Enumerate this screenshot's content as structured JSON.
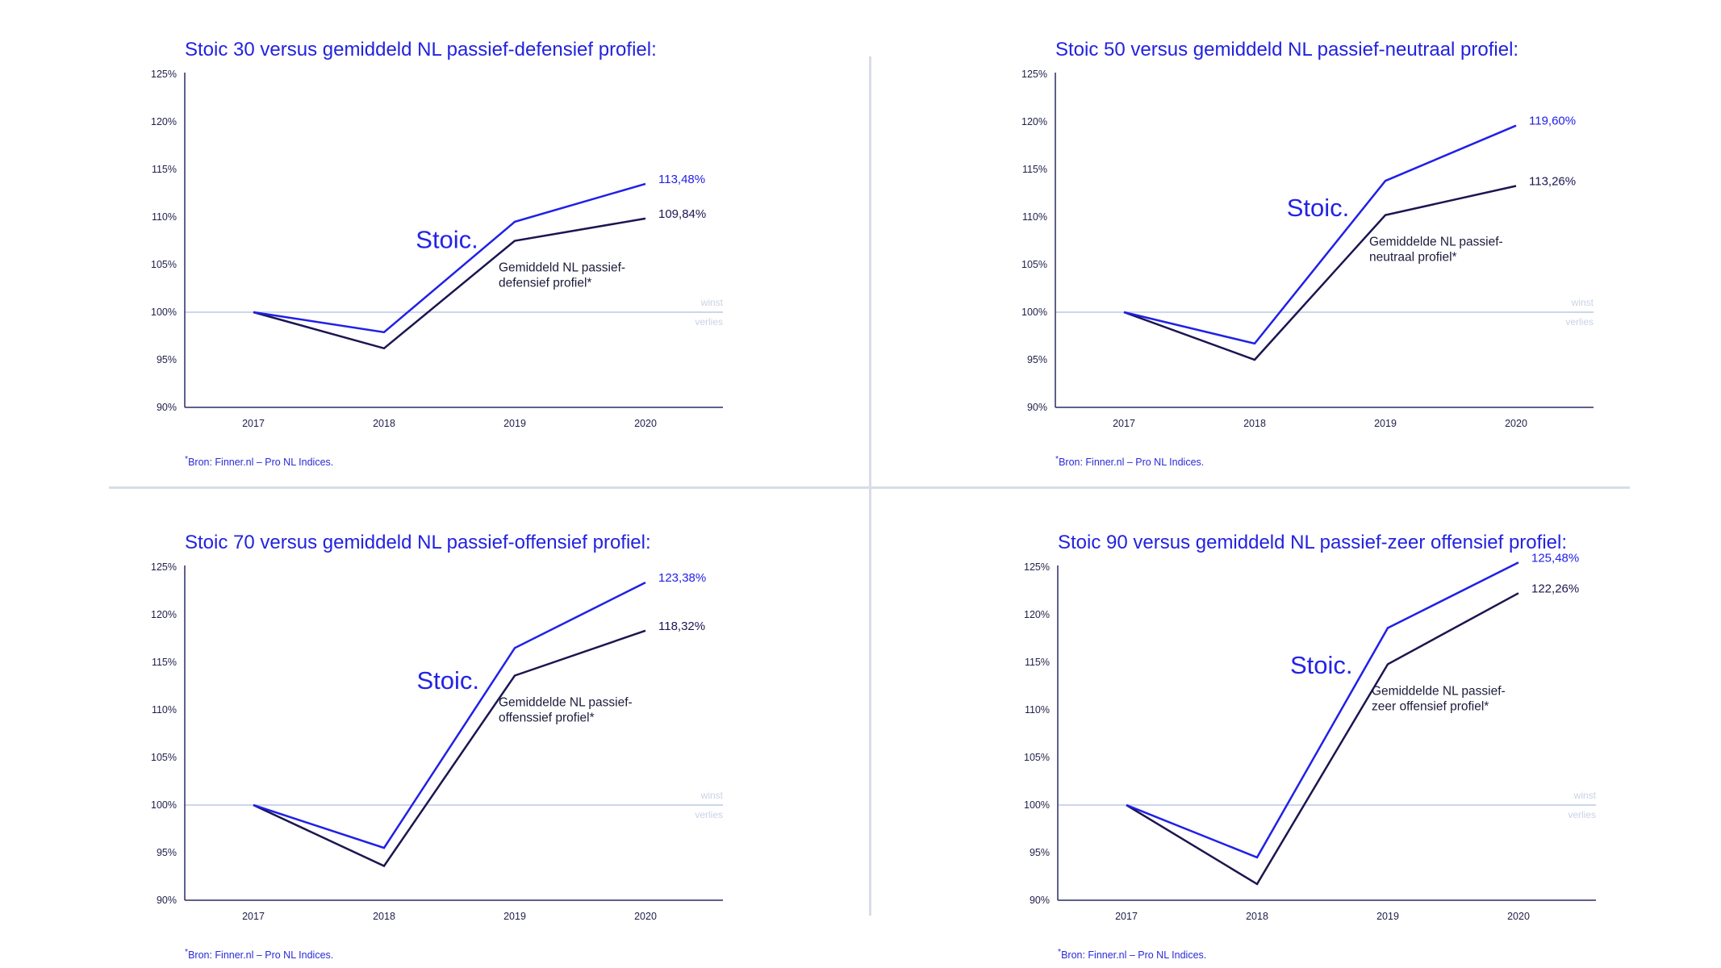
{
  "colors": {
    "stoic": "#2020e8",
    "average": "#1b1650",
    "axis": "#2b2b66",
    "baseline": "#cdd6ea",
    "divider": "#d7dde8"
  },
  "chart_data": [
    {
      "type": "line",
      "title": "Stoic 30 versus gemiddeld NL passief-defensief profiel:",
      "x": [
        "2017",
        "2018",
        "2019",
        "2020"
      ],
      "ylim": [
        90,
        125
      ],
      "y_ticks": [
        "90%",
        "95%",
        "100%",
        "105%",
        "110%",
        "115%",
        "120%",
        "125%"
      ],
      "series": [
        {
          "name": "Stoic.",
          "values": [
            100,
            97.9,
            109.5,
            113.48
          ],
          "end_label": "113,48%"
        },
        {
          "name": "Gemiddeld NL passief-defensief profiel*",
          "note_lines": [
            "Gemiddeld NL passief-",
            "defensief profiel*"
          ],
          "values": [
            100,
            96.2,
            107.5,
            109.84
          ],
          "end_label": "109,84%"
        }
      ],
      "zone_labels": [
        "winst",
        "verlies"
      ],
      "source_mark": "*",
      "source": "Bron: Finner.nl – Pro NL Indices."
    },
    {
      "type": "line",
      "title": "Stoic 50 versus gemiddeld NL passief-neutraal profiel:",
      "x": [
        "2017",
        "2018",
        "2019",
        "2020"
      ],
      "ylim": [
        90,
        125
      ],
      "y_ticks": [
        "90%",
        "95%",
        "100%",
        "105%",
        "110%",
        "115%",
        "120%",
        "125%"
      ],
      "series": [
        {
          "name": "Stoic.",
          "values": [
            100,
            96.7,
            113.8,
            119.6
          ],
          "end_label": "119,60%"
        },
        {
          "name": "Gemiddelde NL passief-neutraal profiel*",
          "note_lines": [
            "Gemiddelde NL passief-",
            "neutraal profiel*"
          ],
          "values": [
            100,
            95.0,
            110.2,
            113.26
          ],
          "end_label": "113,26%"
        }
      ],
      "zone_labels": [
        "winst",
        "verlies"
      ],
      "source_mark": "*",
      "source": "Bron: Finner.nl – Pro NL Indices."
    },
    {
      "type": "line",
      "title": "Stoic 70 versus gemiddeld NL passief-offensief profiel:",
      "x": [
        "2017",
        "2018",
        "2019",
        "2020"
      ],
      "ylim": [
        90,
        125
      ],
      "y_ticks": [
        "90%",
        "95%",
        "100%",
        "105%",
        "110%",
        "115%",
        "120%",
        "125%"
      ],
      "series": [
        {
          "name": "Stoic.",
          "values": [
            100,
            95.5,
            116.5,
            123.38
          ],
          "end_label": "123,38%"
        },
        {
          "name": "Gemiddelde NL passief-offenssief profiel*",
          "note_lines": [
            "Gemiddelde NL passief-",
            "offenssief profiel*"
          ],
          "values": [
            100,
            93.6,
            113.6,
            118.32
          ],
          "end_label": "118,32%"
        }
      ],
      "zone_labels": [
        "winst",
        "verlies"
      ],
      "source_mark": "*",
      "source": "Bron: Finner.nl – Pro NL Indices."
    },
    {
      "type": "line",
      "title": "Stoic 90 versus gemiddeld NL passief-zeer offensief profiel:",
      "x": [
        "2017",
        "2018",
        "2019",
        "2020"
      ],
      "ylim": [
        90,
        125
      ],
      "y_ticks": [
        "90%",
        "95%",
        "100%",
        "105%",
        "110%",
        "115%",
        "120%",
        "125%"
      ],
      "series": [
        {
          "name": "Stoic.",
          "values": [
            100,
            94.5,
            118.6,
            125.48
          ],
          "end_label": "125,48%"
        },
        {
          "name": "Gemiddelde NL passief-zeer offensief profiel*",
          "note_lines": [
            "Gemiddelde NL passief-",
            "zeer offensief profiel*"
          ],
          "values": [
            100,
            91.7,
            114.8,
            122.26
          ],
          "end_label": "122,26%"
        }
      ],
      "zone_labels": [
        "winst",
        "verlies"
      ],
      "source_mark": "*",
      "source": "Bron: Finner.nl – Pro NL Indices."
    }
  ]
}
